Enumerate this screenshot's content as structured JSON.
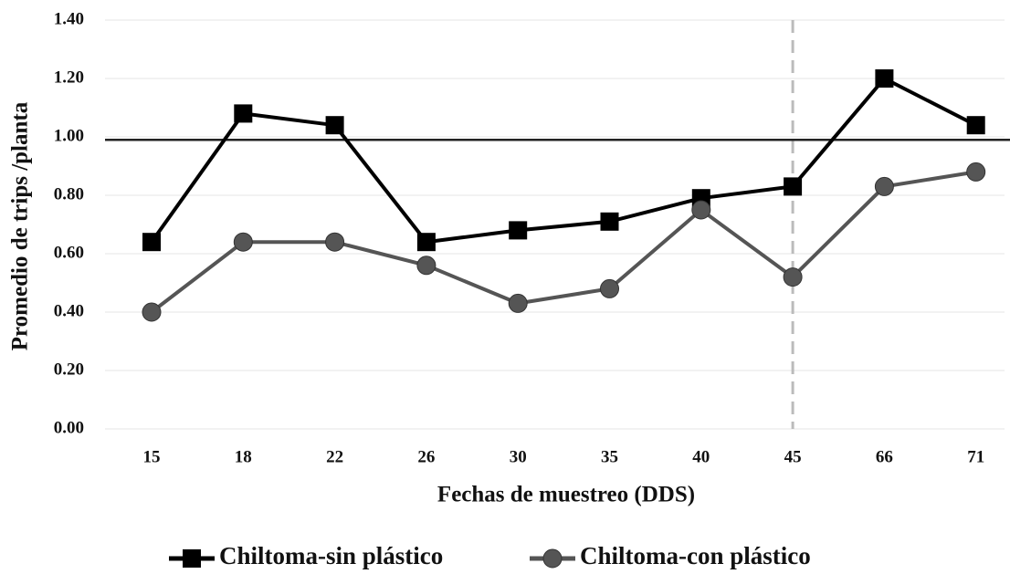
{
  "chart_data": {
    "type": "line",
    "x_label": "Fechas de muestreo (DDS)",
    "y_label": "Promedio de trips /planta",
    "categories": [
      "15",
      "18",
      "22",
      "26",
      "30",
      "35",
      "40",
      "45",
      "66",
      "71"
    ],
    "series": [
      {
        "name": "Chiltoma-sin plástico",
        "color": "#000000",
        "marker": "square",
        "values": [
          0.64,
          1.08,
          1.04,
          0.64,
          0.68,
          0.71,
          0.79,
          0.83,
          1.2,
          1.04
        ]
      },
      {
        "name": "Chiltoma-con plástico",
        "color": "#555555",
        "marker": "circle",
        "values": [
          0.4,
          0.64,
          0.64,
          0.56,
          0.43,
          0.48,
          0.75,
          0.52,
          0.83,
          0.88
        ]
      }
    ],
    "ylim": [
      0,
      1.4
    ],
    "yticks": [
      {
        "value": 0,
        "label": "0.00"
      },
      {
        "value": 0.2,
        "label": "0.20"
      },
      {
        "value": 0.4,
        "label": "0.40"
      },
      {
        "value": 0.6,
        "label": "0.60"
      },
      {
        "value": 0.8,
        "label": "0.80"
      },
      {
        "value": 1,
        "label": "1.00"
      },
      {
        "value": 1.2,
        "label": "1.20"
      },
      {
        "value": 1.4,
        "label": "1.40"
      }
    ],
    "grid": true,
    "hline": 0.99,
    "vline": "45",
    "legend": "bottom"
  }
}
